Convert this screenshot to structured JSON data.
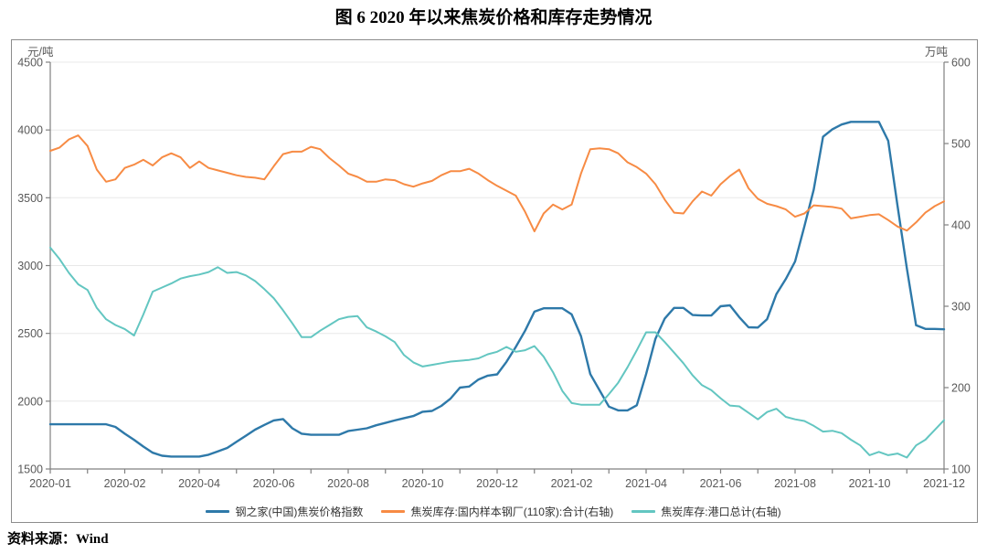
{
  "title": "图 6  2020 年以来焦炭价格和库存走势情况",
  "source": {
    "label": "资料来源：",
    "value": "Wind"
  },
  "chart_data": {
    "type": "line",
    "title": "2020 年以来焦炭价格和库存走势情况",
    "grid": true,
    "legend_position": "bottom-inside",
    "x_tick_labels": [
      "2020-01",
      "2020-02",
      "2020-04",
      "2020-06",
      "2020-08",
      "2020-10",
      "2020-12",
      "2021-02",
      "2021-04",
      "2021-06",
      "2021-08",
      "2021-10",
      "2021-12"
    ],
    "left_axis": {
      "unit": "元/吨",
      "min": 1500,
      "max": 4500,
      "ticks": [
        1500,
        2000,
        2500,
        3000,
        3500,
        4000,
        4500
      ]
    },
    "right_axis": {
      "unit": "万吨",
      "min": 100,
      "max": 600,
      "ticks": [
        100,
        200,
        300,
        400,
        500,
        600
      ]
    },
    "colors": {
      "price_blue": "#2e79a9",
      "steel_inventory_orange": "#f78b44",
      "port_inventory_teal": "#63c6c1",
      "gridline": "#e8e8e8",
      "axis": "#808080",
      "tick_text": "#595959"
    },
    "series": [
      {
        "name": "钢之家(中国)焦炭价格指数",
        "axis": "left",
        "color": "#2e79a9",
        "values": [
          1830,
          1830,
          1830,
          1830,
          1830,
          1830,
          1830,
          1810,
          1760,
          1715,
          1665,
          1620,
          1598,
          1592,
          1592,
          1592,
          1592,
          1605,
          1630,
          1655,
          1700,
          1745,
          1790,
          1825,
          1858,
          1868,
          1800,
          1760,
          1752,
          1752,
          1752,
          1752,
          1780,
          1790,
          1800,
          1822,
          1840,
          1858,
          1875,
          1890,
          1922,
          1928,
          1965,
          2020,
          2100,
          2108,
          2160,
          2188,
          2198,
          2290,
          2400,
          2520,
          2660,
          2685,
          2685,
          2685,
          2640,
          2480,
          2200,
          2080,
          1960,
          1932,
          1932,
          1970,
          2200,
          2460,
          2610,
          2688,
          2688,
          2635,
          2632,
          2632,
          2700,
          2707,
          2620,
          2545,
          2543,
          2605,
          2790,
          2900,
          3030,
          3290,
          3560,
          3950,
          4005,
          4040,
          4060,
          4060,
          4060,
          4060,
          3920,
          3440,
          2980,
          2560,
          2533,
          2533,
          2530
        ]
      },
      {
        "name": "焦炭库存:国内样本钢厂(110家):合计(右轴)",
        "axis": "right",
        "color": "#f78b44",
        "values": [
          491,
          495,
          505,
          510,
          497,
          468,
          453,
          456,
          470,
          474,
          480,
          473,
          483,
          488,
          483,
          470,
          478,
          470,
          467,
          464,
          461,
          459,
          458,
          456,
          472,
          487,
          490,
          490,
          496,
          493,
          482,
          473,
          463,
          459,
          453,
          453,
          456,
          455,
          450,
          447,
          451,
          454,
          461,
          466,
          466,
          469,
          463,
          455,
          448,
          442,
          436,
          416,
          392,
          414,
          425,
          419,
          425,
          463,
          493,
          494,
          493,
          488,
          477,
          471,
          463,
          450,
          431,
          415,
          414,
          429,
          441,
          436,
          450,
          460,
          468,
          445,
          432,
          426,
          423,
          419,
          410,
          414,
          424,
          423,
          422,
          420,
          408,
          410,
          412,
          413,
          406,
          398,
          393,
          403,
          415,
          423,
          429
        ]
      },
      {
        "name": "焦炭库存:港口总计(右轴)",
        "axis": "right",
        "color": "#63c6c1",
        "values": [
          372,
          358,
          341,
          327,
          320,
          298,
          284,
          277,
          272,
          264,
          290,
          318,
          323,
          328,
          334,
          337,
          339,
          342,
          348,
          341,
          342,
          338,
          331,
          321,
          310,
          295,
          279,
          262,
          262,
          270,
          277,
          284,
          287,
          288,
          274,
          269,
          263,
          256,
          240,
          231,
          226,
          228,
          230,
          232,
          233,
          234,
          236,
          241,
          244,
          250,
          244,
          246,
          251,
          238,
          219,
          196,
          181,
          179,
          179,
          179,
          192,
          206,
          225,
          246,
          268,
          268,
          256,
          243,
          230,
          215,
          203,
          197,
          187,
          178,
          177,
          169,
          161,
          170,
          174,
          164,
          161,
          159,
          153,
          146,
          147,
          144,
          136,
          129,
          117,
          121,
          117,
          119,
          114,
          129,
          136,
          148,
          160
        ]
      }
    ]
  }
}
